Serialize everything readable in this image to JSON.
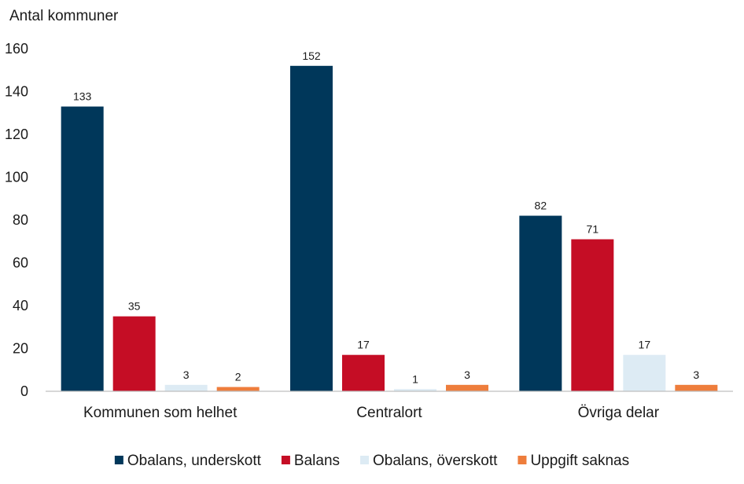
{
  "chart_data": {
    "type": "bar",
    "ylabel": "Antal kommuner",
    "ylim": [
      0,
      160
    ],
    "yticks": [
      0,
      20,
      40,
      60,
      80,
      100,
      120,
      140,
      160
    ],
    "grid": false,
    "legend_position": "bottom",
    "categories": [
      "Kommunen som helhet",
      "Centralort",
      "Övriga delar"
    ],
    "series": [
      {
        "name": "Obalans, underskott",
        "color": "#00375a",
        "values": [
          133,
          152,
          82
        ]
      },
      {
        "name": "Balans",
        "color": "#c50d25",
        "values": [
          35,
          17,
          71
        ]
      },
      {
        "name": "Obalans, överskott",
        "color": "#ddebf4",
        "values": [
          3,
          1,
          17
        ]
      },
      {
        "name": "Uppgift saknas",
        "color": "#ee7d3c",
        "values": [
          2,
          3,
          3
        ]
      }
    ]
  }
}
